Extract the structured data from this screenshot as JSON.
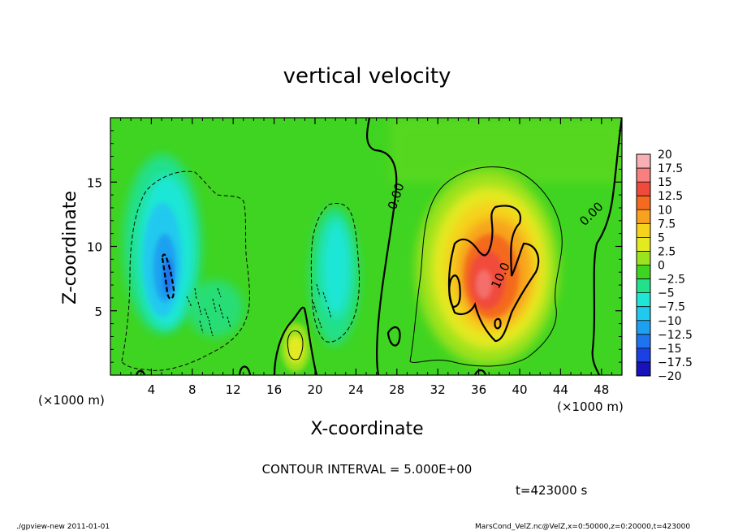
{
  "chart_data": {
    "type": "heatmap",
    "title": "vertical velocity",
    "xlabel": "X-coordinate",
    "ylabel": "Z-coordinate",
    "x_unit": "(×1000 m)",
    "y_unit": "(×1000 m)",
    "xlim": [
      0,
      50
    ],
    "ylim": [
      0,
      20
    ],
    "x_ticks": [
      4,
      8,
      12,
      16,
      20,
      24,
      28,
      32,
      36,
      40,
      44,
      48
    ],
    "y_ticks": [
      5,
      10,
      15
    ],
    "contour_interval_text": "CONTOUR INTERVAL = 5.000E+00",
    "time_text": "t=423000 s",
    "contour_labels": [
      {
        "text": "0.00",
        "x": 28.3,
        "z": 13.8,
        "angle": -72
      },
      {
        "text": "10.0",
        "x": 38.5,
        "z": 7.6,
        "angle": -65
      },
      {
        "text": "0.00",
        "x": 47.3,
        "z": 12.3,
        "angle": -45
      }
    ],
    "colorbar": {
      "labels": [
        "20",
        "17.5",
        "15",
        "12.5",
        "10",
        "7.5",
        "5",
        "2.5",
        "0",
        "−2.5",
        "−5",
        "−7.5",
        "−10",
        "−12.5",
        "−15",
        "−17.5",
        "−20"
      ],
      "colors": [
        "#f7b0b4",
        "#f77f80",
        "#f04b3a",
        "#f46a1e",
        "#f7a21e",
        "#f6d21c",
        "#e3ea20",
        "#9be21f",
        "#3fd421",
        "#23e08a",
        "#1fe6d6",
        "#21c9ee",
        "#1ea0f0",
        "#1f73ee",
        "#1c40e4",
        "#1712b9",
        "#5e0ea9"
      ]
    },
    "features": [
      {
        "name": "updraft core",
        "x": 36.5,
        "z": 8.0,
        "value": 15
      },
      {
        "name": "downdraft left",
        "x": 5.8,
        "z": 8.0,
        "value": -12.5
      },
      {
        "name": "downdraft mid",
        "x": 21.5,
        "z": 8.0,
        "value": -7.5
      },
      {
        "name": "weak updraft",
        "x": 18.2,
        "z": 2.2,
        "value": 7.5
      }
    ]
  },
  "footer": {
    "left": "./gpview-new   2011-01-01",
    "right": "MarsCond_VelZ.nc@VelZ,x=0:50000,z=0:20000,t=423000"
  }
}
